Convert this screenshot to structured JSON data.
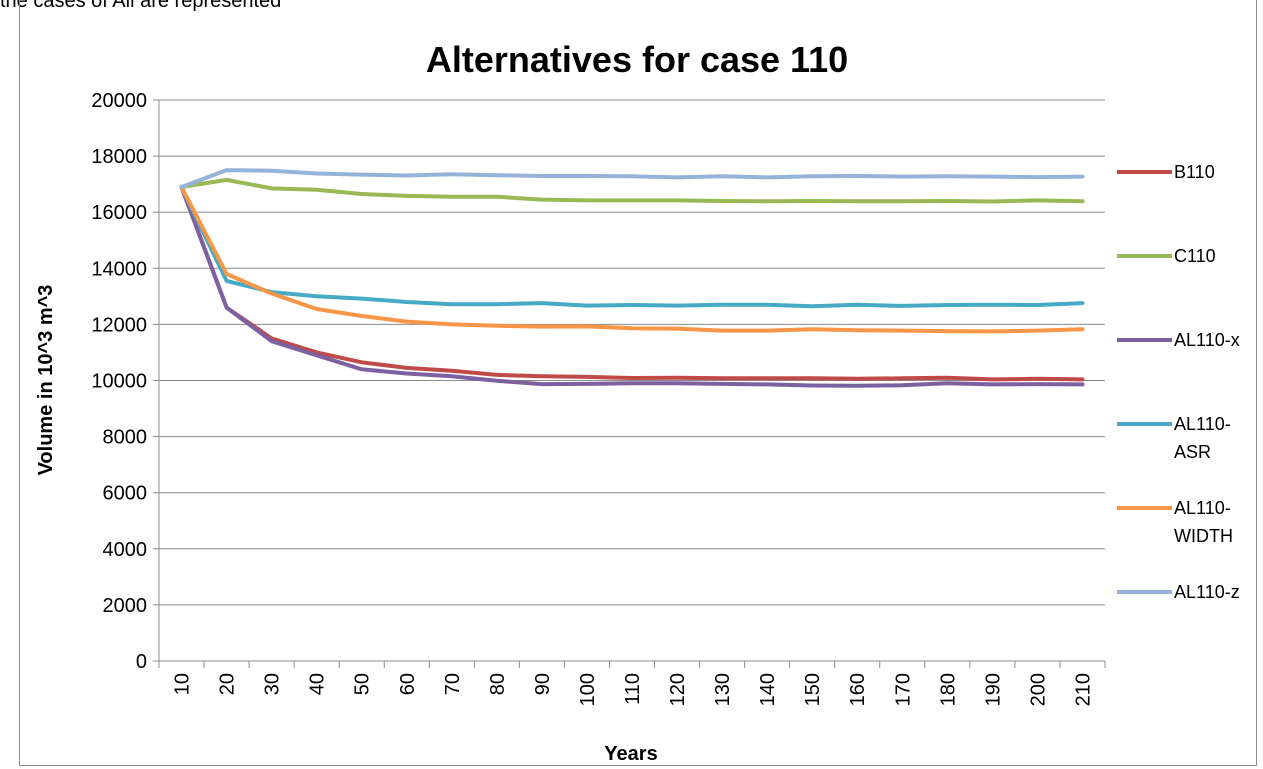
{
  "top_text": "the cases of All are represented",
  "chart_data": {
    "type": "line",
    "title": "Alternatives for case 110",
    "xlabel": "Years",
    "ylabel": "Volume in 10^3 m^3",
    "ylim": [
      0,
      20000
    ],
    "yticks": [
      0,
      2000,
      4000,
      6000,
      8000,
      10000,
      12000,
      14000,
      16000,
      18000,
      20000
    ],
    "grid": "horizontal",
    "legend": "right",
    "categories": [
      "10",
      "20",
      "30",
      "40",
      "50",
      "60",
      "70",
      "80",
      "90",
      "100",
      "110",
      "120",
      "130",
      "140",
      "150",
      "160",
      "170",
      "180",
      "190",
      "200",
      "210"
    ],
    "series": [
      {
        "name": "B110",
        "color": "#be4b48",
        "values": [
          16900,
          12600,
          11500,
          11000,
          10650,
          10450,
          10350,
          10200,
          10150,
          10130,
          10090,
          10100,
          10080,
          10080,
          10080,
          10060,
          10080,
          10100,
          10040,
          10060,
          10040
        ]
      },
      {
        "name": "C110",
        "color": "#98b954",
        "values": [
          16900,
          17150,
          16850,
          16800,
          16650,
          16580,
          16550,
          16550,
          16450,
          16420,
          16420,
          16420,
          16400,
          16390,
          16400,
          16390,
          16390,
          16400,
          16380,
          16420,
          16390
        ]
      },
      {
        "name": "AL110-x",
        "color": "#7d60a0",
        "values": [
          16900,
          12600,
          11400,
          10900,
          10400,
          10250,
          10150,
          9990,
          9870,
          9880,
          9900,
          9900,
          9880,
          9860,
          9820,
          9810,
          9830,
          9900,
          9860,
          9870,
          9860
        ]
      },
      {
        "name": "AL110-ASR",
        "color": "#46aac5",
        "values": [
          16900,
          13550,
          13150,
          13000,
          12920,
          12800,
          12720,
          12720,
          12760,
          12670,
          12690,
          12670,
          12700,
          12700,
          12650,
          12700,
          12660,
          12690,
          12700,
          12690,
          12760
        ]
      },
      {
        "name": "AL110-WIDTH",
        "color": "#f79646",
        "values": [
          16900,
          13800,
          13100,
          12550,
          12300,
          12100,
          12000,
          11950,
          11920,
          11930,
          11860,
          11850,
          11780,
          11780,
          11830,
          11790,
          11780,
          11760,
          11750,
          11780,
          11830
        ]
      },
      {
        "name": "AL110-z",
        "color": "#95b3d7",
        "values": [
          16900,
          17500,
          17480,
          17380,
          17340,
          17310,
          17350,
          17320,
          17290,
          17290,
          17280,
          17240,
          17280,
          17240,
          17280,
          17290,
          17270,
          17280,
          17270,
          17250,
          17270
        ]
      }
    ],
    "legend_labels": [
      [
        "B110"
      ],
      [
        "C110"
      ],
      [
        "AL110-x"
      ],
      [
        "AL110-",
        "ASR"
      ],
      [
        "AL110-",
        "WIDTH"
      ],
      [
        "AL110-z"
      ]
    ]
  }
}
